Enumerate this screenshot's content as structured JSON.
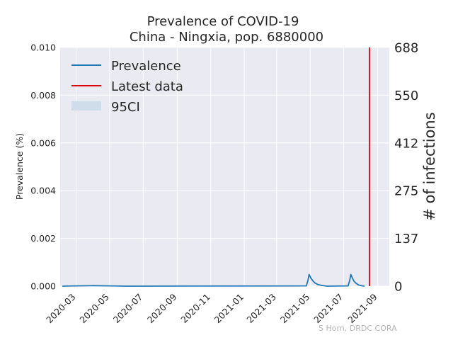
{
  "chart_data": {
    "type": "line",
    "title": "Prevalence of COVID-19",
    "subtitle": "China - Ningxia, pop. 6880000",
    "ylabel": "Prevalence (%)",
    "ylabel_right": "# of infections",
    "ylim": [
      0,
      0.01
    ],
    "yticks": [
      "0.000",
      "0.002",
      "0.004",
      "0.006",
      "0.008",
      "0.010"
    ],
    "yticks_right": [
      "0",
      "137",
      "275",
      "412",
      "550",
      "688"
    ],
    "xlim": [
      "2020-02-01",
      "2021-09-22"
    ],
    "xticks": [
      "2020-03",
      "2020-05",
      "2020-07",
      "2020-09",
      "2020-11",
      "2021-01",
      "2021-03",
      "2021-05",
      "2021-07",
      "2021-09"
    ],
    "grid": true,
    "legend_position": "top-left",
    "series": [
      {
        "name": "Prevalence",
        "color": "#1f77b4",
        "x": [
          "2020-02-05",
          "2020-03-01",
          "2020-04-01",
          "2020-05-01",
          "2020-06-01",
          "2021-04-24",
          "2021-04-27",
          "2021-04-29",
          "2021-05-02",
          "2021-05-06",
          "2021-05-10",
          "2021-05-15",
          "2021-05-22",
          "2021-06-01",
          "2021-07-09",
          "2021-07-12",
          "2021-07-14",
          "2021-07-17",
          "2021-07-20",
          "2021-07-24",
          "2021-07-28",
          "2021-08-02",
          "2021-08-08"
        ],
        "values": [
          0.0,
          1e-05,
          2e-05,
          1e-05,
          0.0,
          1e-05,
          0.00025,
          0.00049,
          0.00035,
          0.00022,
          0.00013,
          7e-05,
          3e-05,
          0.0,
          1e-05,
          0.00025,
          0.00049,
          0.00033,
          0.0002,
          0.00011,
          5e-05,
          2e-05,
          0.0
        ]
      }
    ],
    "latest_data": {
      "name": "Latest data",
      "date": "2021-08-17",
      "color": "#e00000"
    },
    "ci_band": {
      "name": "95CI",
      "color": "#cfdcea"
    },
    "credit": "S Horn, DRDC CORA"
  }
}
